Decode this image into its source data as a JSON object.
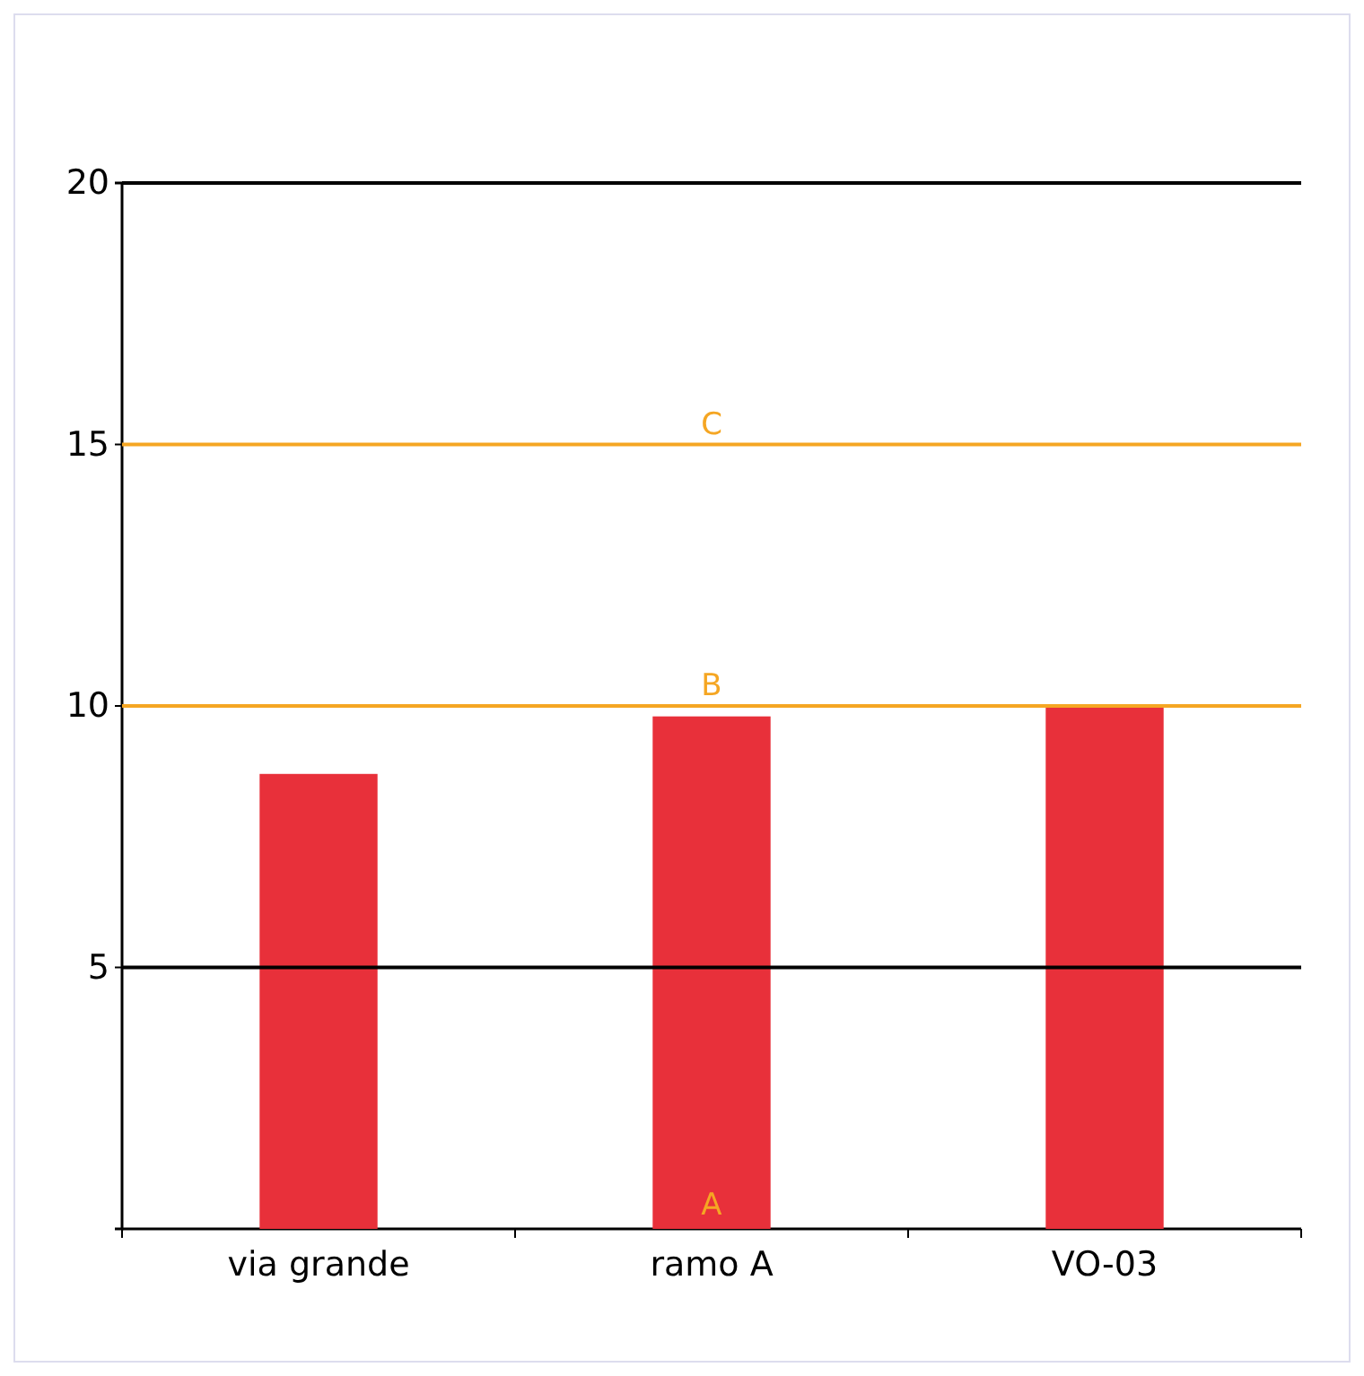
{
  "chart_data": {
    "type": "bar",
    "categories": [
      "via grande",
      "ramo A",
      "VO-03"
    ],
    "series": [
      {
        "color": "#e8303a",
        "values": [
          8.7,
          9.8,
          10.0
        ]
      }
    ],
    "ylim": [
      0,
      20
    ],
    "yticks": [
      5,
      10,
      15,
      20
    ],
    "annotations": [
      {
        "text": "A",
        "y": 0
      }
    ],
    "ref_lines": [
      {
        "axis": "y",
        "value": 5,
        "color": "#000000"
      },
      {
        "axis": "y",
        "value": 10,
        "label": "B",
        "color": "#f5a623"
      },
      {
        "axis": "y",
        "value": 15,
        "label": "C",
        "color": "#f5a623"
      },
      {
        "axis": "y",
        "value": 20,
        "color": "#000000"
      }
    ]
  }
}
